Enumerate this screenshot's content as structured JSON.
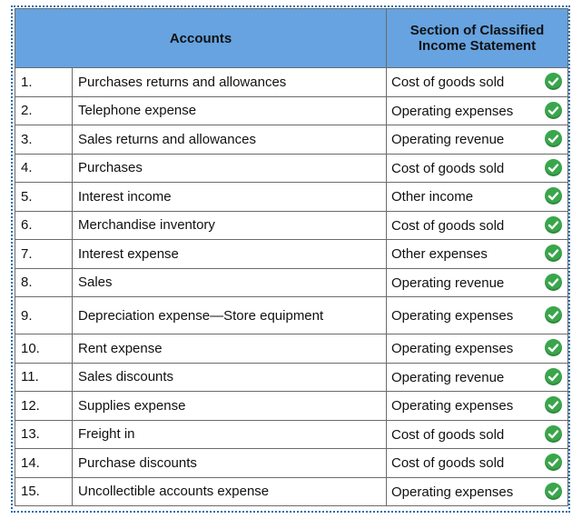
{
  "table": {
    "header": {
      "accounts": "Accounts",
      "section": "Section of Classified Income Statement"
    },
    "rows": [
      {
        "num": "1.",
        "account": "Purchases returns and allowances",
        "section": "Cost of goods sold",
        "status": "check-icon"
      },
      {
        "num": "2.",
        "account": "Telephone expense",
        "section": "Operating expenses",
        "status": "check-icon"
      },
      {
        "num": "3.",
        "account": "Sales returns and allowances",
        "section": "Operating revenue",
        "status": "check-icon"
      },
      {
        "num": "4.",
        "account": "Purchases",
        "section": "Cost of goods sold",
        "status": "check-icon"
      },
      {
        "num": "5.",
        "account": "Interest income",
        "section": "Other income",
        "status": "check-icon"
      },
      {
        "num": "6.",
        "account": "Merchandise inventory",
        "section": "Cost of goods sold",
        "status": "check-icon"
      },
      {
        "num": "7.",
        "account": "Interest expense",
        "section": "Other expenses",
        "status": "check-icon"
      },
      {
        "num": "8.",
        "account": "Sales",
        "section": "Operating revenue",
        "status": "check-icon"
      },
      {
        "num": "9.",
        "account": "Depreciation expense—Store equipment",
        "section": "Operating expenses",
        "status": "check-icon"
      },
      {
        "num": "10.",
        "account": "Rent expense",
        "section": "Operating expenses",
        "status": "check-icon"
      },
      {
        "num": "11.",
        "account": "Sales discounts",
        "section": "Operating revenue",
        "status": "check-icon"
      },
      {
        "num": "12.",
        "account": "Supplies expense",
        "section": "Operating expenses",
        "status": "check-icon"
      },
      {
        "num": "13.",
        "account": "Freight in",
        "section": "Cost of goods sold",
        "status": "check-icon"
      },
      {
        "num": "14.",
        "account": "Purchase discounts",
        "section": "Cost of goods sold",
        "status": "check-icon"
      },
      {
        "num": "15.",
        "account": "Uncollectible accounts expense",
        "section": "Operating expenses",
        "status": "check-icon"
      }
    ]
  },
  "colors": {
    "header_bg": "#66a3e0",
    "check": "#3aa64b",
    "frame_border": "#1f6fb2"
  }
}
